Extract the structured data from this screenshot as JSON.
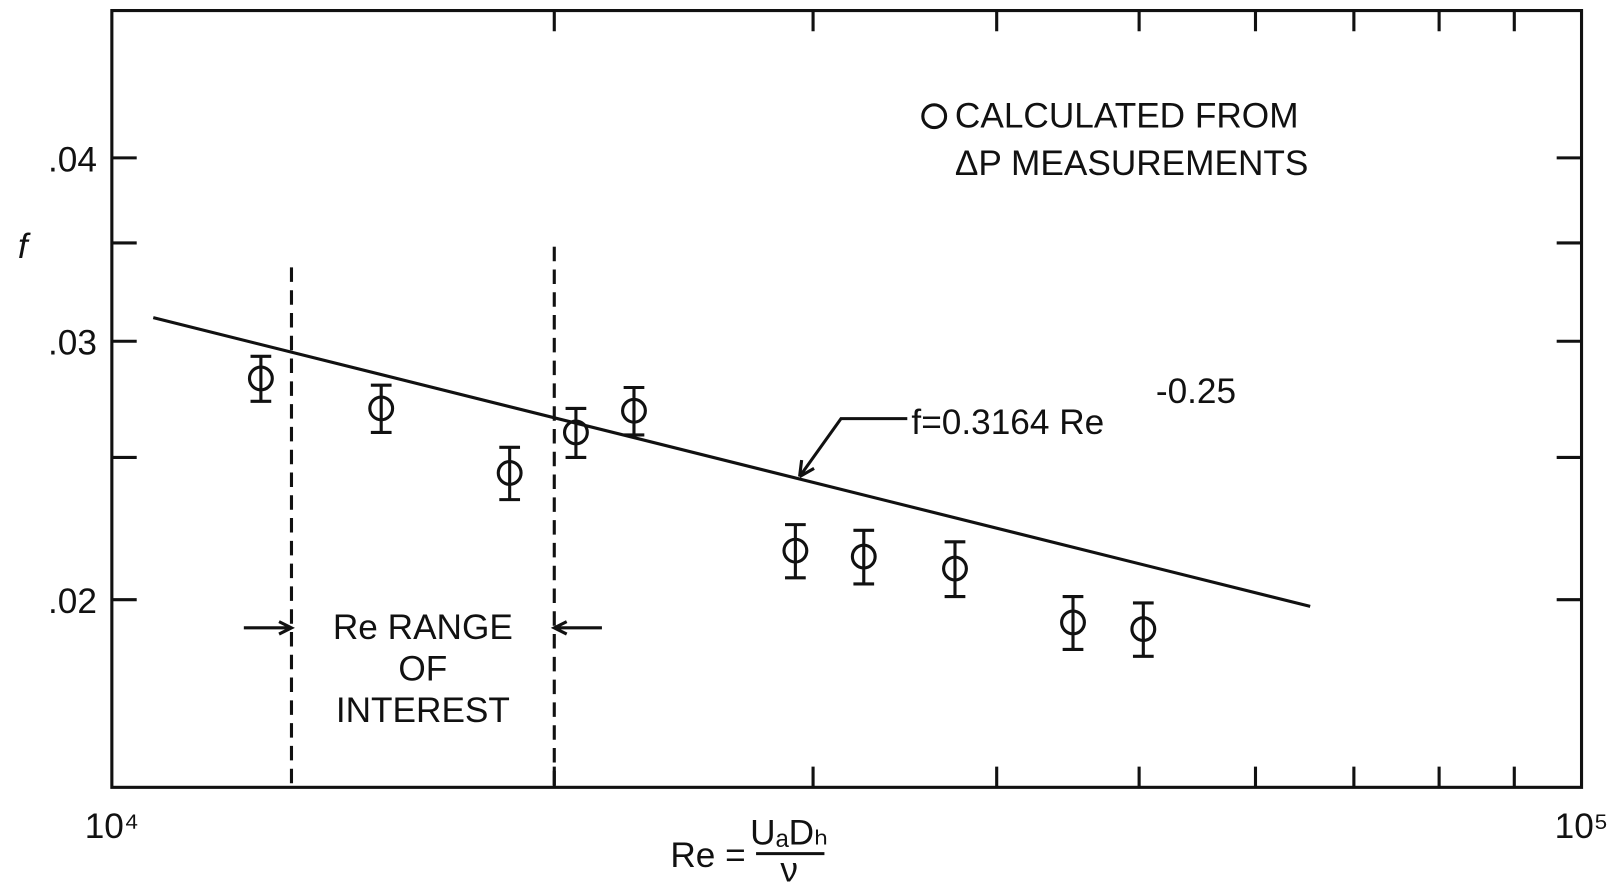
{
  "chart_data": {
    "type": "scatter",
    "ylabel": "f",
    "xlabel": {
      "lhs": "Re =",
      "numerator": "UₐDₕ",
      "denominator": "ν"
    },
    "xscale": "log",
    "yscale": "log",
    "xlim": [
      10000,
      100000
    ],
    "ylim": [
      0.0149,
      0.0504
    ],
    "xticks": [
      {
        "value": 10000,
        "label": "10⁴"
      },
      {
        "value": 100000,
        "label": "10⁵"
      }
    ],
    "xminor_ticks": [
      20000,
      30000,
      40000,
      50000,
      60000,
      70000,
      80000,
      90000
    ],
    "yticks": [
      {
        "value": 0.02,
        "label": ".02"
      },
      {
        "value": 0.03,
        "label": ".03"
      },
      {
        "value": 0.04,
        "label": ".04"
      }
    ],
    "yminor_ticks": [
      0.025,
      0.035
    ],
    "legend": "upper right",
    "series": [
      {
        "name": [
          "CALCULATED FROM",
          "ΔP MEASUREMENTS"
        ],
        "color": "#111111",
        "x": [
          12630,
          15250,
          18650,
          20690,
          22660,
          29180,
          32480,
          37470,
          45080,
          50330
        ],
        "values": [
          0.0283,
          0.027,
          0.0244,
          0.026,
          0.0269,
          0.0216,
          0.0214,
          0.021,
          0.0193,
          0.0191
        ],
        "errors": [
          0.001,
          0.001,
          0.001,
          0.001,
          0.001,
          0.0009,
          0.0009,
          0.0009,
          0.0008,
          0.0008
        ]
      }
    ],
    "fit_line": {
      "name": "f=0.3164 Re",
      "exponent": "-0.25",
      "x": [
        10670,
        65370
      ],
      "values": [
        0.03113,
        0.01979
      ]
    },
    "range": {
      "x": [
        13250,
        20000
      ],
      "label": [
        "Re RANGE",
        "OF",
        "INTEREST"
      ]
    }
  }
}
